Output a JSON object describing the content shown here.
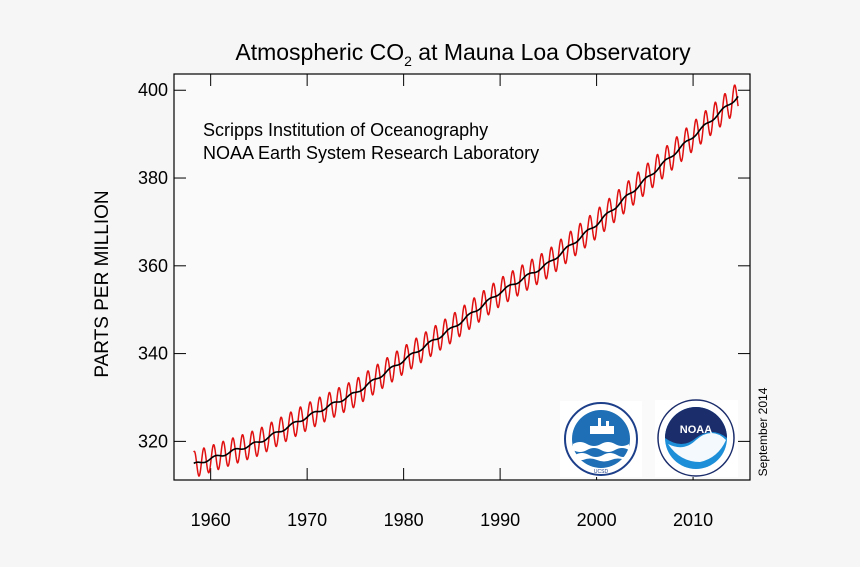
{
  "chart_data": {
    "type": "line",
    "title": "Atmospheric CO",
    "title_subscript": "2",
    "title_suffix": " at Mauna Loa Observatory",
    "xlabel": "",
    "ylabel": "PARTS PER MILLION",
    "xlim": [
      1956.2,
      2015.9
    ],
    "ylim": [
      311.2,
      403.7
    ],
    "grid": false,
    "x_ticks": [
      1960,
      1970,
      1980,
      1990,
      2000,
      2010
    ],
    "x_tick_labels": [
      "1960",
      "1970",
      "1980",
      "1990",
      "2000",
      "2010"
    ],
    "y_ticks": [
      320,
      340,
      360,
      380,
      400
    ],
    "y_tick_labels": [
      "320",
      "340",
      "360",
      "380",
      "400"
    ],
    "annotations": [
      "Scripps Institution of Oceanography",
      "NOAA Earth System Research Laboratory"
    ],
    "date_note": "September 2014",
    "series": [
      {
        "color": "#e01010",
        "x_range": [
          1958.25,
          2014.67
        ],
        "trend_points": [
          [
            1958,
            314.5
          ],
          [
            1965,
            319.8
          ],
          [
            1970,
            325.6
          ],
          [
            1975,
            331.0
          ],
          [
            1980,
            338.5
          ],
          [
            1985,
            345.7
          ],
          [
            1990,
            354.0
          ],
          [
            1995,
            360.5
          ],
          [
            2000,
            369.5
          ],
          [
            2005,
            379.5
          ],
          [
            2010,
            389.5
          ],
          [
            2014.67,
            398.6
          ]
        ],
        "seasonal_amplitude": [
          [
            1958,
            3.0
          ],
          [
            2014.67,
            3.3
          ]
        ]
      },
      {
        "color": "#000000",
        "x_range": [
          1958.25,
          2014.67
        ],
        "trend_points": [
          [
            1958,
            314.5
          ],
          [
            1965,
            319.8
          ],
          [
            1970,
            325.6
          ],
          [
            1975,
            331.0
          ],
          [
            1980,
            338.5
          ],
          [
            1985,
            345.7
          ],
          [
            1990,
            354.0
          ],
          [
            1995,
            360.5
          ],
          [
            2000,
            369.5
          ],
          [
            2005,
            379.5
          ],
          [
            2010,
            389.5
          ],
          [
            2014.67,
            398.6
          ]
        ]
      }
    ]
  },
  "logos": {
    "scripps": {
      "name": "scripps-logo",
      "label": "UCSD"
    },
    "noaa": {
      "name": "noaa-logo",
      "label": "NOAA"
    }
  }
}
